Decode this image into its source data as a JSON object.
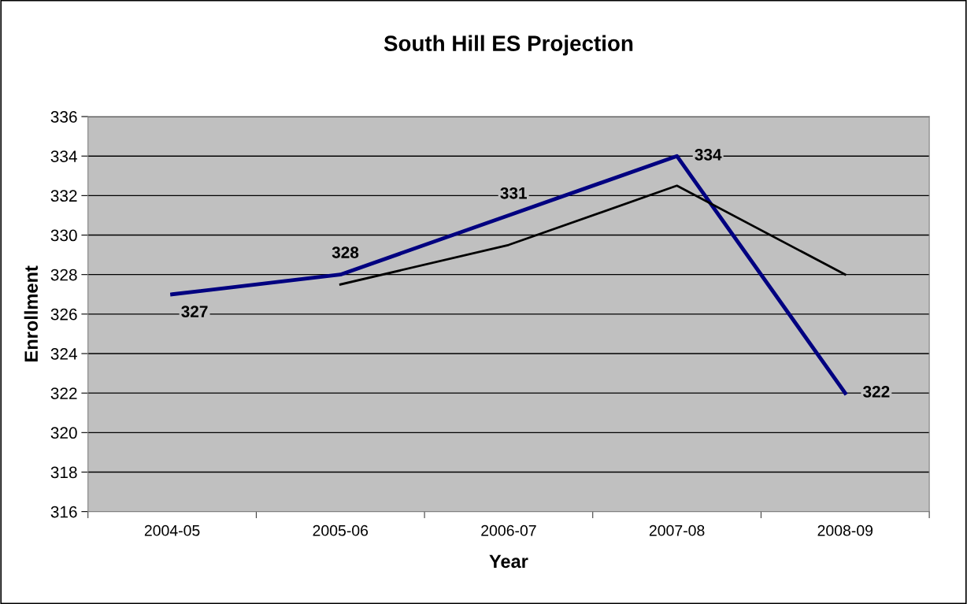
{
  "chart_data": {
    "type": "line",
    "title": "South Hill ES Projection",
    "xlabel": "Year",
    "ylabel": "Enrollment",
    "categories": [
      "2004-05",
      "2005-06",
      "2006-07",
      "2007-08",
      "2008-09"
    ],
    "series": [
      {
        "color": "#000080",
        "values": [
          327,
          328,
          331,
          334,
          322
        ],
        "value_labels": [
          "327",
          "328",
          "331",
          "334",
          "322"
        ]
      },
      {
        "color": "#000000",
        "values": [
          null,
          327.5,
          329.5,
          332.5,
          328
        ]
      }
    ],
    "ylim": [
      316,
      336
    ],
    "yticks": [
      316,
      318,
      320,
      322,
      324,
      326,
      328,
      330,
      332,
      334,
      336
    ],
    "grid": "y",
    "marker": "none",
    "line_style": "solid"
  }
}
